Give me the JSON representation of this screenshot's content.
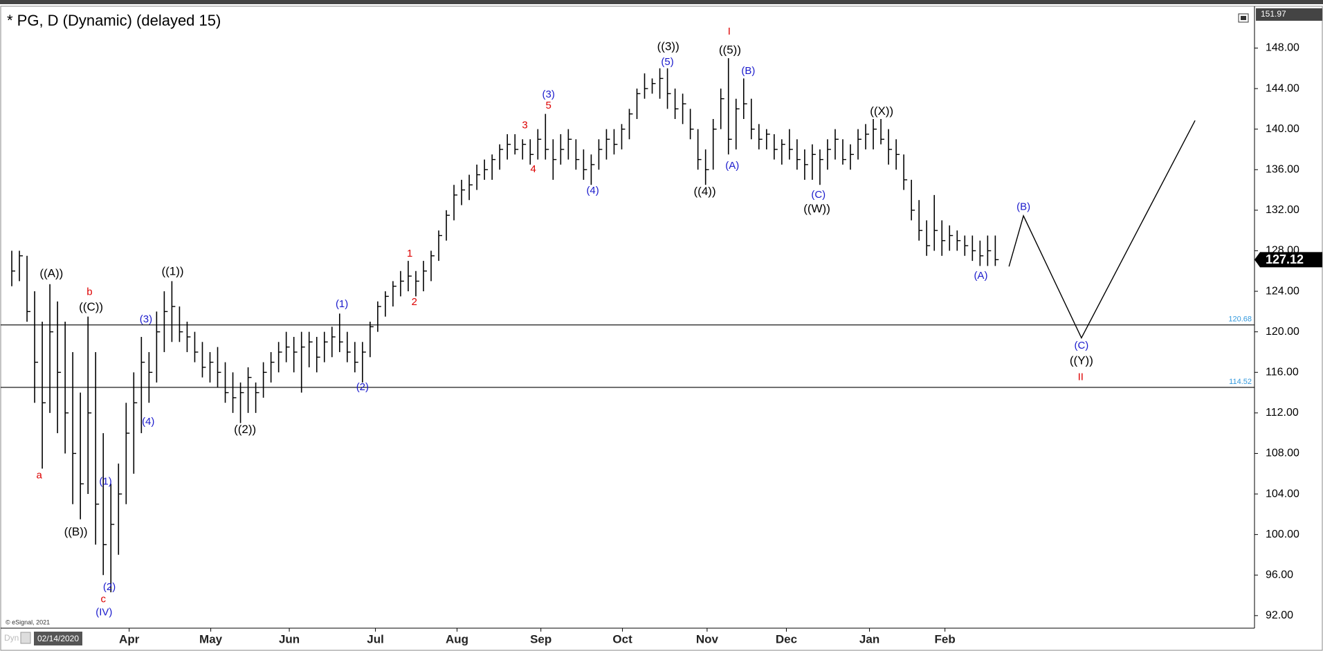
{
  "chart_data": {
    "type": "ohlc",
    "title": "* PG, D (Dynamic) (delayed 15)",
    "copyright": "© eSignal, 2021",
    "mode_label": "Dyn",
    "cursor_date": "02/14/2020",
    "color": "#000000",
    "ylim": [
      90.76,
      151.97
    ],
    "yticks": [
      {
        "value": 92,
        "label": "92.00"
      },
      {
        "value": 96,
        "label": "96.00"
      },
      {
        "value": 100,
        "label": "100.00"
      },
      {
        "value": 104,
        "label": "104.00"
      },
      {
        "value": 108,
        "label": "108.00"
      },
      {
        "value": 112,
        "label": "112.00"
      },
      {
        "value": 116,
        "label": "116.00"
      },
      {
        "value": 120,
        "label": "120.00"
      },
      {
        "value": 124,
        "label": "124.00"
      },
      {
        "value": 128,
        "label": "128.00"
      },
      {
        "value": 132,
        "label": "132.00"
      },
      {
        "value": 136,
        "label": "136.00"
      },
      {
        "value": 140,
        "label": "140.00"
      },
      {
        "value": 144,
        "label": "144.00"
      },
      {
        "value": 148,
        "label": "148.00"
      }
    ],
    "xlim": [
      -1,
      163
    ],
    "xticks": [
      {
        "value": 15.4,
        "label": "Apr"
      },
      {
        "value": 26.1,
        "label": "May"
      },
      {
        "value": 36.4,
        "label": "Jun"
      },
      {
        "value": 47.7,
        "label": "Jul"
      },
      {
        "value": 58.4,
        "label": "Aug"
      },
      {
        "value": 69.4,
        "label": "Sep"
      },
      {
        "value": 80.1,
        "label": "Oct"
      },
      {
        "value": 91.2,
        "label": "Nov"
      },
      {
        "value": 101.6,
        "label": "Dec"
      },
      {
        "value": 112.5,
        "label": "Jan"
      },
      {
        "value": 122.4,
        "label": "Feb"
      }
    ],
    "low": [
      124.5,
      125,
      121,
      113,
      106.5,
      112,
      110,
      108,
      103,
      101.5,
      104,
      99,
      96,
      94.3,
      98,
      103,
      106,
      110,
      113,
      115,
      118,
      119,
      119,
      118,
      117,
      115.5,
      115,
      114.5,
      113,
      112,
      111,
      112,
      112,
      113.5,
      115,
      116,
      117,
      116,
      114,
      116.5,
      116,
      117,
      117.5,
      118,
      117,
      116,
      115,
      117.5,
      120,
      121.5,
      122.5,
      123.5,
      124,
      123.5,
      124,
      125,
      127,
      129,
      131,
      132.5,
      133,
      134,
      135,
      135,
      136,
      137,
      137.5,
      137,
      136.5,
      137,
      137,
      135,
      136.5,
      137,
      136,
      135,
      134.5,
      136,
      137,
      137.5,
      138,
      139,
      141,
      143,
      143.5,
      143,
      142,
      141,
      140.5,
      139,
      136,
      134.5,
      136,
      140,
      137.5,
      138,
      141,
      139,
      138,
      138,
      137,
      136.5,
      137,
      136,
      135,
      135,
      134.5,
      136,
      137,
      136.5,
      136,
      137,
      138,
      138,
      138.5,
      136.5,
      136,
      134,
      131,
      129,
      127.5,
      128,
      127.5,
      128,
      128,
      127.5,
      127,
      126.5,
      126.5,
      126.5
    ],
    "high": [
      128,
      128,
      127.5,
      124,
      121,
      124.7,
      123,
      121,
      118,
      114,
      121.5,
      118,
      110,
      105,
      107,
      113,
      116,
      119.5,
      118,
      122,
      124,
      125,
      122.5,
      121,
      120,
      119,
      118,
      118.5,
      117,
      116,
      115,
      116.5,
      115,
      117,
      118,
      119,
      120,
      119.5,
      120,
      120,
      119.5,
      120,
      120.5,
      121.8,
      120,
      119,
      119,
      121,
      123,
      124,
      125,
      126,
      127,
      126,
      127,
      128,
      130,
      132,
      134.5,
      135,
      135.5,
      136.5,
      137,
      137.5,
      138.5,
      139.5,
      139.5,
      139,
      139,
      140,
      141.5,
      139,
      139.5,
      140,
      139,
      138,
      137.5,
      139,
      140,
      140,
      140.5,
      142,
      144,
      145.5,
      145,
      146,
      146,
      144,
      143.5,
      142,
      140,
      138,
      141,
      144,
      147,
      143,
      145,
      143,
      140.5,
      140,
      139.5,
      139,
      140,
      139,
      138,
      138.5,
      138,
      139,
      140,
      139,
      138.5,
      140,
      140.5,
      141,
      141,
      140,
      139,
      137.5,
      135,
      133,
      131,
      133.5,
      131,
      130.5,
      130,
      129.5,
      129.5,
      129,
      129.5,
      129.5
    ],
    "close": [
      126,
      127.5,
      122,
      117,
      113,
      120,
      116,
      112,
      108,
      105,
      112,
      103,
      99,
      101,
      104,
      110,
      113,
      117,
      116,
      120,
      122,
      122.5,
      120,
      119.5,
      118,
      116.5,
      117,
      116,
      114,
      113.5,
      114,
      115.5,
      114,
      116,
      117,
      118,
      118.5,
      118,
      118.5,
      119,
      117.5,
      119,
      119.5,
      119,
      118,
      117,
      118,
      120.5,
      122.5,
      123.5,
      124.5,
      125,
      125.5,
      125,
      126,
      127.5,
      129.5,
      131.5,
      133.5,
      134,
      134.5,
      135.5,
      136,
      137,
      138,
      138.5,
      138,
      138.5,
      137.5,
      139,
      138,
      137,
      138,
      139,
      137,
      136,
      136.5,
      138,
      139,
      138.5,
      140,
      141.5,
      143.5,
      144,
      144.5,
      145,
      143.5,
      142,
      142.5,
      140,
      137,
      136,
      140,
      143,
      139,
      142,
      142.5,
      140,
      139,
      139.5,
      138,
      138.5,
      138,
      137,
      136.5,
      137.5,
      137,
      138,
      139,
      137,
      137.5,
      139,
      139.5,
      140,
      139,
      138,
      137.5,
      135,
      132,
      130,
      128.5,
      130,
      129,
      129.5,
      129,
      128.5,
      128,
      127.5,
      128,
      127.12
    ],
    "levels": [
      120.68,
      114.52
    ],
    "level_color": "#3399dd",
    "projection": {
      "x": [
        130.8,
        132.7,
        140.3,
        155.2
      ],
      "y": [
        126.45,
        131.45,
        119.4,
        140.85
      ]
    },
    "annotations": [
      {
        "text": "((A))",
        "x": 5.2,
        "y": 125.7,
        "color": "#000000"
      },
      {
        "text": "b",
        "x": 10.2,
        "y": 123.9,
        "color": "#dd0000"
      },
      {
        "text": "((C))",
        "x": 10.4,
        "y": 122.4,
        "color": "#000000"
      },
      {
        "text": "a",
        "x": 3.6,
        "y": 105.8,
        "color": "#dd0000"
      },
      {
        "text": "((B))",
        "x": 8.4,
        "y": 100.2,
        "color": "#000000"
      },
      {
        "text": "(1)",
        "x": 12.3,
        "y": 105.2,
        "color": "#1a1acc"
      },
      {
        "text": "(2)",
        "x": 12.8,
        "y": 94.8,
        "color": "#1a1acc"
      },
      {
        "text": "c",
        "x": 12.0,
        "y": 93.6,
        "color": "#dd0000"
      },
      {
        "text": "(IV)",
        "x": 12.1,
        "y": 92.3,
        "color": "#1a1acc"
      },
      {
        "text": "(3)",
        "x": 17.6,
        "y": 121.2,
        "color": "#1a1acc"
      },
      {
        "text": "(4)",
        "x": 17.9,
        "y": 111.1,
        "color": "#1a1acc"
      },
      {
        "text": "((1))",
        "x": 21.1,
        "y": 125.9,
        "color": "#000000"
      },
      {
        "text": "((2))",
        "x": 30.6,
        "y": 110.3,
        "color": "#000000"
      },
      {
        "text": "(1)",
        "x": 43.3,
        "y": 122.7,
        "color": "#1a1acc"
      },
      {
        "text": "(2)",
        "x": 46.0,
        "y": 114.5,
        "color": "#1a1acc"
      },
      {
        "text": "1",
        "x": 52.2,
        "y": 127.7,
        "color": "#dd0000"
      },
      {
        "text": "2",
        "x": 52.8,
        "y": 122.9,
        "color": "#dd0000"
      },
      {
        "text": "3",
        "x": 67.3,
        "y": 140.35,
        "color": "#dd0000"
      },
      {
        "text": "4",
        "x": 68.4,
        "y": 136.0,
        "color": "#dd0000"
      },
      {
        "text": "(3)",
        "x": 70.4,
        "y": 143.4,
        "color": "#1a1acc"
      },
      {
        "text": "5",
        "x": 70.4,
        "y": 142.3,
        "color": "#dd0000"
      },
      {
        "text": "(4)",
        "x": 76.2,
        "y": 133.9,
        "color": "#1a1acc"
      },
      {
        "text": "((3))",
        "x": 86.1,
        "y": 148.1,
        "color": "#000000"
      },
      {
        "text": "(5)",
        "x": 86.0,
        "y": 146.6,
        "color": "#1a1acc"
      },
      {
        "text": "((4))",
        "x": 90.9,
        "y": 133.8,
        "color": "#000000"
      },
      {
        "text": "I",
        "x": 94.1,
        "y": 149.6,
        "color": "#dd0000"
      },
      {
        "text": "((5))",
        "x": 94.2,
        "y": 147.75,
        "color": "#000000"
      },
      {
        "text": "(A)",
        "x": 94.5,
        "y": 136.35,
        "color": "#1a1acc"
      },
      {
        "text": "(B)",
        "x": 96.6,
        "y": 145.7,
        "color": "#1a1acc"
      },
      {
        "text": "(C)",
        "x": 105.8,
        "y": 133.5,
        "color": "#1a1acc"
      },
      {
        "text": "((W))",
        "x": 105.6,
        "y": 132.1,
        "color": "#000000"
      },
      {
        "text": "((X))",
        "x": 114.1,
        "y": 141.7,
        "color": "#000000"
      },
      {
        "text": "(A)",
        "x": 127.1,
        "y": 125.5,
        "color": "#1a1acc"
      },
      {
        "text": "(B)",
        "x": 132.7,
        "y": 132.3,
        "color": "#1a1acc"
      },
      {
        "text": "(C)",
        "x": 140.3,
        "y": 118.6,
        "color": "#1a1acc"
      },
      {
        "text": "((Y))",
        "x": 140.3,
        "y": 117.1,
        "color": "#000000"
      },
      {
        "text": "II",
        "x": 140.2,
        "y": 115.5,
        "color": "#dd0000"
      }
    ]
  }
}
